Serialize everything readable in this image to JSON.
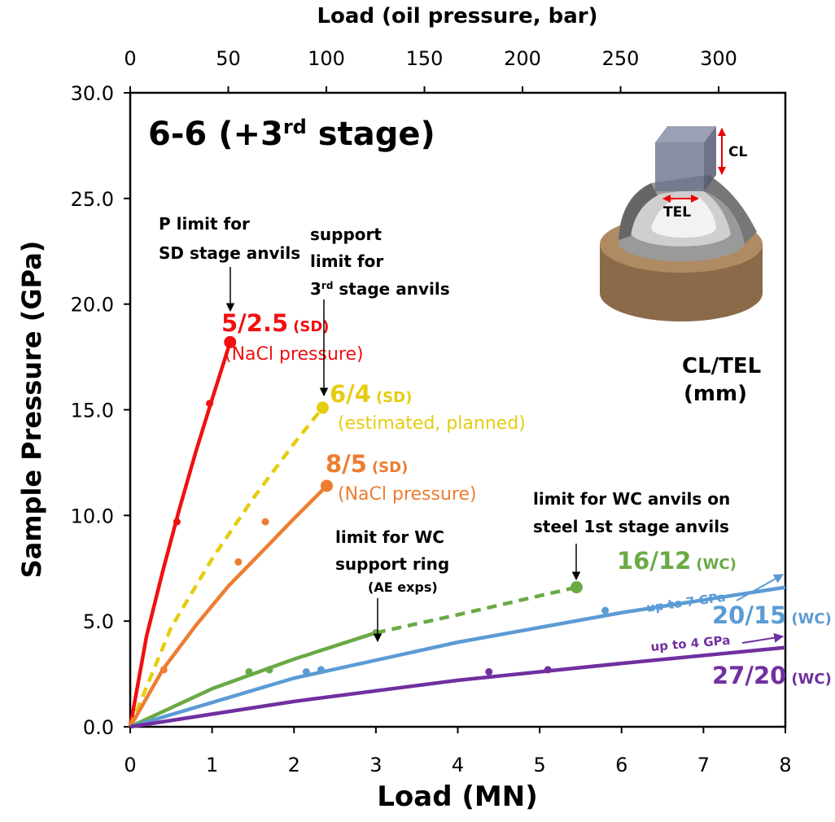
{
  "chart_data": {
    "type": "line",
    "title": [
      "6-6 (+3",
      "rd",
      " stage)"
    ],
    "xlabel": "Load (MN)",
    "ylabel": "Sample Pressure (GPa)",
    "x2label": "Load (oil pressure, bar)",
    "xlim": [
      0,
      8
    ],
    "xticks": [
      0,
      1,
      2,
      3,
      4,
      5,
      6,
      7,
      8
    ],
    "ylim": [
      0,
      30
    ],
    "yticks": [
      {
        "value": 0,
        "label": "0.0"
      },
      {
        "value": 5,
        "label": "5.0"
      },
      {
        "value": 10,
        "label": "10.0"
      },
      {
        "value": 15,
        "label": "15.0"
      },
      {
        "value": 20,
        "label": "20.0"
      },
      {
        "value": 25,
        "label": "25.0"
      },
      {
        "value": 30,
        "label": "30.0"
      }
    ],
    "x2lim": [
      0,
      334
    ],
    "x2ticks": [
      0,
      50,
      100,
      150,
      200,
      250,
      300
    ],
    "series": [
      {
        "name": "5/2.5",
        "tag": "(SD)",
        "note": "(NaCl pressure)",
        "color": "#f01010",
        "segments": [
          {
            "dashed": false,
            "x": [
              0,
              0.2,
              0.4,
              0.6,
              0.8,
              1.0,
              1.22
            ],
            "values": [
              0,
              4.3,
              7.4,
              10.3,
              13.0,
              15.5,
              18.2
            ]
          }
        ],
        "points_x": [
          0.57,
          0.97
        ],
        "points_y": [
          9.7,
          15.3
        ],
        "limit_x": 1.22,
        "limit_y": 18.2
      },
      {
        "name": "6/4",
        "tag": "(SD)",
        "note": "(estimated, planned)",
        "color": "#e6cc10",
        "segments": [
          {
            "dashed": true,
            "x": [
              0,
              0.5,
              1,
              1.5,
              2,
              2.35
            ],
            "values": [
              0,
              4.7,
              7.95,
              10.8,
              13.4,
              15.1
            ]
          }
        ],
        "points_x": [],
        "points_y": [],
        "limit_x": 2.35,
        "limit_y": 15.1
      },
      {
        "name": "8/5",
        "tag": "(SD)",
        "note": "(NaCl pressure)",
        "color": "#ed7d31",
        "segments": [
          {
            "dashed": false,
            "x": [
              0,
              0.4,
              0.8,
              1.2,
              1.6,
              2.0,
              2.4
            ],
            "values": [
              0,
              2.72,
              4.79,
              6.66,
              8.25,
              9.85,
              11.4
            ]
          }
        ],
        "points_x": [
          0.41,
          1.32,
          1.65
        ],
        "points_y": [
          2.7,
          7.8,
          9.7
        ],
        "limit_x": 2.4,
        "limit_y": 11.4
      },
      {
        "name": "16/12",
        "tag": "(WC)",
        "color": "#6aaa45",
        "segments": [
          {
            "dashed": false,
            "x": [
              0,
              1,
              2,
              3
            ],
            "values": [
              0,
              1.8,
              3.2,
              4.45
            ]
          },
          {
            "dashed": true,
            "x": [
              3,
              4,
              5,
              5.45
            ],
            "values": [
              4.45,
              5.3,
              6.2,
              6.6
            ]
          }
        ],
        "points_x": [
          1.45,
          1.7,
          3.0
        ],
        "points_y": [
          2.6,
          2.7,
          4.45
        ],
        "limit_x": 5.45,
        "limit_y": 6.6
      },
      {
        "name": "20/15",
        "tag": "(WC)",
        "note": "up to 7 GPa",
        "color": "#5b9bd5",
        "segments": [
          {
            "dashed": false,
            "x": [
              0,
              2,
              4,
              6,
              8
            ],
            "values": [
              0,
              2.3,
              4.0,
              5.4,
              6.6
            ]
          }
        ],
        "points_x": [
          2.15,
          2.33,
          5.8
        ],
        "points_y": [
          2.6,
          2.7,
          5.5
        ]
      },
      {
        "name": "27/20",
        "tag": "(WC)",
        "note": "up to 4 GPa",
        "color": "#7030a0",
        "segments": [
          {
            "dashed": false,
            "x": [
              0,
              2,
              4,
              6,
              8
            ],
            "values": [
              0,
              1.2,
              2.2,
              3.0,
              3.75
            ]
          }
        ],
        "points_x": [
          4.38,
          5.1
        ],
        "points_y": [
          2.6,
          2.7
        ]
      }
    ],
    "annotations": [
      {
        "lines": [
          [
            "P limit for"
          ],
          [
            "SD stage anvils"
          ]
        ]
      },
      {
        "lines": [
          [
            "support"
          ],
          [
            "limit for"
          ],
          [
            "3",
            "rd",
            " stage anvils"
          ]
        ]
      },
      {
        "lines": [
          [
            "limit for WC"
          ],
          [
            "support ring"
          ],
          [
            "(AE exps)"
          ]
        ]
      },
      {
        "lines": [
          [
            "limit for WC anvils on"
          ],
          [
            "steel 1st stage anvils"
          ]
        ]
      }
    ],
    "inset": {
      "cl": "CL",
      "tel": "TEL",
      "caption": [
        "CL/TEL",
        "(mm)"
      ]
    }
  }
}
